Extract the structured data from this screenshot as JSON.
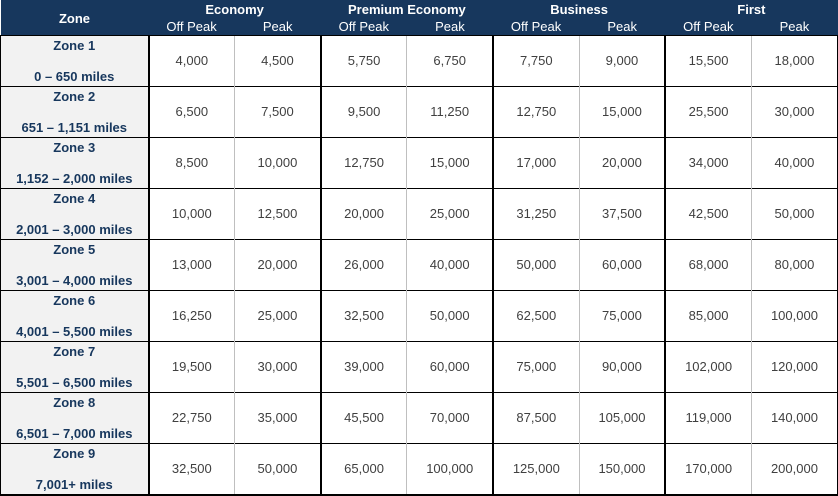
{
  "colors": {
    "header_bg": "#17375D",
    "header_text": "#FFFFFF",
    "zone_bg": "#F2F2F2",
    "zone_text": "#17375D",
    "value_text": "#404040",
    "border_heavy": "#000000",
    "border_light": "#BFBFBF"
  },
  "table": {
    "zone_header": "Zone",
    "groups": [
      {
        "label": "Economy",
        "sub": [
          "Off Peak",
          "Peak"
        ]
      },
      {
        "label": "Premium Economy",
        "sub": [
          "Off Peak",
          "Peak"
        ]
      },
      {
        "label": "Business",
        "sub": [
          "Off Peak",
          "Peak"
        ]
      },
      {
        "label": "First",
        "sub": [
          "Off Peak",
          "Peak"
        ]
      }
    ],
    "rows": [
      {
        "zone": "Zone 1",
        "range": "0 – 650 miles",
        "values": [
          "4,000",
          "4,500",
          "5,750",
          "6,750",
          "7,750",
          "9,000",
          "15,500",
          "18,000"
        ]
      },
      {
        "zone": "Zone 2",
        "range": "651 – 1,151 miles",
        "values": [
          "6,500",
          "7,500",
          "9,500",
          "11,250",
          "12,750",
          "15,000",
          "25,500",
          "30,000"
        ]
      },
      {
        "zone": "Zone 3",
        "range": "1,152 – 2,000 miles",
        "values": [
          "8,500",
          "10,000",
          "12,750",
          "15,000",
          "17,000",
          "20,000",
          "34,000",
          "40,000"
        ]
      },
      {
        "zone": "Zone 4",
        "range": "2,001 – 3,000 miles",
        "values": [
          "10,000",
          "12,500",
          "20,000",
          "25,000",
          "31,250",
          "37,500",
          "42,500",
          "50,000"
        ]
      },
      {
        "zone": "Zone 5",
        "range": "3,001 – 4,000 miles",
        "values": [
          "13,000",
          "20,000",
          "26,000",
          "40,000",
          "50,000",
          "60,000",
          "68,000",
          "80,000"
        ]
      },
      {
        "zone": "Zone 6",
        "range": "4,001 – 5,500 miles",
        "values": [
          "16,250",
          "25,000",
          "32,500",
          "50,000",
          "62,500",
          "75,000",
          "85,000",
          "100,000"
        ]
      },
      {
        "zone": "Zone 7",
        "range": "5,501 – 6,500 miles",
        "values": [
          "19,500",
          "30,000",
          "39,000",
          "60,000",
          "75,000",
          "90,000",
          "102,000",
          "120,000"
        ]
      },
      {
        "zone": "Zone 8",
        "range": "6,501 – 7,000 miles",
        "values": [
          "22,750",
          "35,000",
          "45,500",
          "70,000",
          "87,500",
          "105,000",
          "119,000",
          "140,000"
        ]
      },
      {
        "zone": "Zone 9",
        "range": "7,001+ miles",
        "values": [
          "32,500",
          "50,000",
          "65,000",
          "100,000",
          "125,000",
          "150,000",
          "170,000",
          "200,000"
        ]
      }
    ]
  }
}
